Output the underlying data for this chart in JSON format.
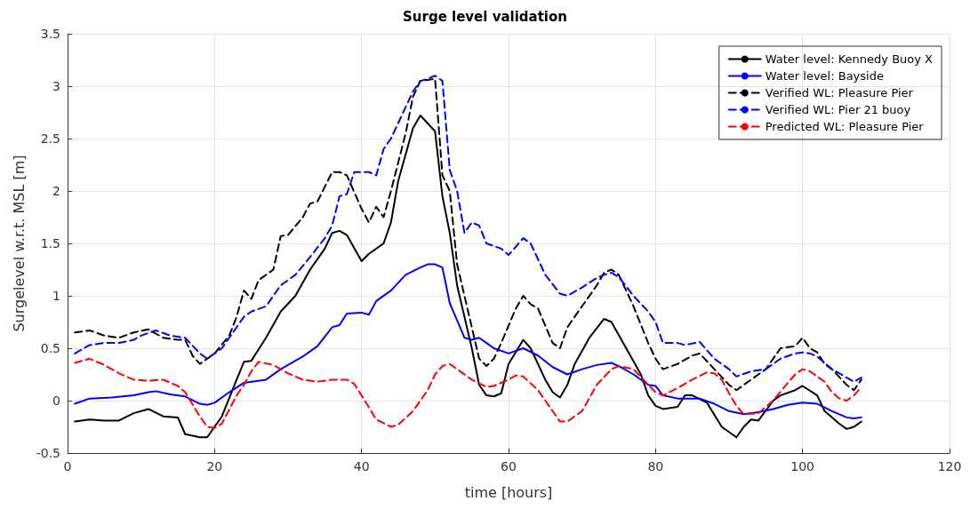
{
  "chart_data": {
    "type": "line",
    "title": "Surge level validation",
    "xlabel": "time [hours]",
    "ylabel": "Surgelevel w.r.t. MSL [m]",
    "xlim": [
      0,
      120
    ],
    "xticks": [
      0,
      20,
      40,
      60,
      80,
      100,
      120
    ],
    "ylim": [
      -0.5,
      3.5
    ],
    "yticks": [
      -0.5,
      0,
      0.5,
      1,
      1.5,
      2,
      2.5,
      3,
      3.5
    ],
    "grid": true,
    "legend": "top right",
    "marker": "none",
    "series": [
      {
        "name": "Water level: Kennedy Buoy X",
        "color": "#000000",
        "line_style": "solid",
        "x": [
          1,
          3,
          5,
          7,
          9,
          11,
          13,
          15,
          16,
          18,
          19,
          21,
          23,
          24,
          25,
          27,
          29,
          31,
          33,
          35,
          36,
          37,
          38,
          40,
          41,
          43,
          44,
          45,
          47,
          48,
          50,
          51,
          52,
          53,
          55,
          56,
          57,
          58,
          59,
          60,
          62,
          63,
          65,
          66,
          67,
          68,
          69,
          71,
          73,
          74,
          76,
          78,
          79,
          80,
          81,
          83,
          84,
          85,
          87,
          89,
          91,
          92,
          93,
          94,
          96,
          97,
          99,
          100,
          102,
          103,
          105,
          106,
          107,
          108
        ],
        "values": [
          -0.2,
          -0.18,
          -0.19,
          -0.19,
          -0.12,
          -0.08,
          -0.15,
          -0.16,
          -0.32,
          -0.35,
          -0.35,
          -0.15,
          0.2,
          0.37,
          0.38,
          0.6,
          0.85,
          1.0,
          1.25,
          1.45,
          1.6,
          1.62,
          1.58,
          1.33,
          1.4,
          1.5,
          1.7,
          2.1,
          2.6,
          2.72,
          2.57,
          1.95,
          1.6,
          1.1,
          0.5,
          0.15,
          0.05,
          0.04,
          0.07,
          0.35,
          0.58,
          0.5,
          0.2,
          0.08,
          0.03,
          0.15,
          0.35,
          0.6,
          0.78,
          0.75,
          0.5,
          0.25,
          0.05,
          -0.05,
          -0.08,
          -0.06,
          0.05,
          0.05,
          -0.02,
          -0.25,
          -0.35,
          -0.25,
          -0.18,
          -0.19,
          0.0,
          0.05,
          0.1,
          0.14,
          0.05,
          -0.1,
          -0.22,
          -0.27,
          -0.25,
          -0.2
        ]
      },
      {
        "name": "Water level: Bayside",
        "color": "#0000ff",
        "line_style": "solid",
        "x": [
          1,
          3,
          6,
          9,
          11,
          12,
          14,
          16,
          18,
          19,
          20,
          22,
          24,
          27,
          29,
          32,
          34,
          36,
          37,
          38,
          40,
          41,
          42,
          44,
          46,
          48,
          49,
          50,
          51,
          52,
          54,
          55,
          56,
          57,
          58,
          60,
          62,
          64,
          66,
          68,
          70,
          72,
          74,
          75,
          77,
          79,
          80,
          81,
          83,
          86,
          88,
          90,
          92,
          94,
          96,
          98,
          100,
          102,
          104,
          106,
          107,
          108
        ],
        "values": [
          -0.03,
          0.02,
          0.03,
          0.05,
          0.08,
          0.09,
          0.06,
          0.04,
          -0.03,
          -0.04,
          -0.02,
          0.08,
          0.17,
          0.2,
          0.3,
          0.42,
          0.52,
          0.7,
          0.72,
          0.83,
          0.84,
          0.82,
          0.95,
          1.05,
          1.2,
          1.27,
          1.3,
          1.3,
          1.27,
          0.93,
          0.6,
          0.58,
          0.6,
          0.55,
          0.5,
          0.45,
          0.5,
          0.43,
          0.32,
          0.25,
          0.3,
          0.34,
          0.36,
          0.33,
          0.25,
          0.15,
          0.14,
          0.05,
          0.02,
          0.02,
          -0.03,
          -0.1,
          -0.13,
          -0.11,
          -0.08,
          -0.04,
          -0.02,
          -0.03,
          -0.1,
          -0.16,
          -0.17,
          -0.16
        ]
      },
      {
        "name": "Verified WL: Pleasure Pier",
        "color": "#000000",
        "line_style": "dashed",
        "x": [
          1,
          3,
          5,
          7,
          9,
          11,
          13,
          15,
          16,
          17,
          18,
          20,
          22,
          23,
          24,
          25,
          26,
          28,
          29,
          30,
          32,
          33,
          34,
          36,
          37,
          38,
          40,
          41,
          42,
          43,
          44,
          46,
          47,
          48,
          49,
          50,
          51,
          52,
          53,
          55,
          56,
          57,
          58,
          59,
          61,
          62,
          63,
          64,
          66,
          67,
          68,
          70,
          72,
          73,
          74,
          75,
          77,
          79,
          80,
          81,
          83,
          85,
          86,
          88,
          90,
          91,
          93,
          95,
          97,
          99,
          100,
          101,
          102,
          103,
          104,
          106,
          107,
          108
        ],
        "values": [
          0.65,
          0.67,
          0.62,
          0.6,
          0.65,
          0.68,
          0.6,
          0.58,
          0.58,
          0.43,
          0.35,
          0.45,
          0.62,
          0.8,
          1.05,
          0.97,
          1.15,
          1.25,
          1.57,
          1.58,
          1.75,
          1.88,
          1.9,
          2.18,
          2.18,
          2.15,
          1.83,
          1.7,
          1.85,
          1.75,
          2.0,
          2.55,
          2.9,
          3.05,
          3.06,
          3.07,
          2.15,
          2.0,
          1.3,
          0.7,
          0.4,
          0.33,
          0.4,
          0.55,
          0.88,
          1.0,
          0.92,
          0.88,
          0.55,
          0.5,
          0.7,
          0.9,
          1.1,
          1.22,
          1.25,
          1.2,
          0.9,
          0.55,
          0.4,
          0.3,
          0.35,
          0.43,
          0.45,
          0.3,
          0.15,
          0.1,
          0.2,
          0.3,
          0.5,
          0.52,
          0.6,
          0.5,
          0.46,
          0.35,
          0.3,
          0.15,
          0.1,
          0.2
        ]
      },
      {
        "name": "Verified WL: Pier 21 buoy",
        "color": "#0000ff",
        "line_style": "dashed",
        "x": [
          1,
          3,
          5,
          7,
          9,
          10,
          12,
          14,
          16,
          18,
          19,
          21,
          22,
          24,
          25,
          27,
          29,
          31,
          33,
          35,
          36,
          37,
          38,
          39,
          41,
          42,
          43,
          44,
          46,
          47,
          48,
          49,
          50,
          51,
          52,
          53,
          54,
          55,
          56,
          57,
          59,
          60,
          62,
          63,
          65,
          67,
          68,
          70,
          72,
          73,
          74,
          75,
          77,
          79,
          80,
          81,
          83,
          84,
          86,
          88,
          90,
          91,
          93,
          95,
          97,
          99,
          100,
          101,
          102,
          104,
          106,
          107,
          108
        ],
        "values": [
          0.45,
          0.53,
          0.55,
          0.55,
          0.58,
          0.62,
          0.67,
          0.62,
          0.6,
          0.45,
          0.4,
          0.5,
          0.6,
          0.8,
          0.85,
          0.9,
          1.1,
          1.2,
          1.37,
          1.55,
          1.67,
          1.95,
          1.97,
          2.18,
          2.18,
          2.15,
          2.4,
          2.5,
          2.8,
          2.95,
          3.05,
          3.07,
          3.1,
          3.05,
          2.2,
          2.0,
          1.6,
          1.7,
          1.67,
          1.5,
          1.45,
          1.39,
          1.55,
          1.5,
          1.2,
          1.02,
          1.0,
          1.08,
          1.17,
          1.2,
          1.22,
          1.18,
          1.0,
          0.85,
          0.75,
          0.55,
          0.55,
          0.53,
          0.56,
          0.4,
          0.3,
          0.23,
          0.28,
          0.3,
          0.4,
          0.45,
          0.46,
          0.45,
          0.42,
          0.3,
          0.22,
          0.18,
          0.22
        ]
      },
      {
        "name": "Predicted WL: Pleasure Pier",
        "color": "#ff0000",
        "line_style": "dashed",
        "x": [
          1,
          3,
          5,
          7,
          9,
          11,
          13,
          15,
          16,
          18,
          19,
          20,
          21,
          23,
          24,
          25,
          26,
          28,
          30,
          32,
          34,
          36,
          38,
          39,
          40,
          42,
          44,
          45,
          47,
          49,
          50,
          51,
          52,
          53,
          55,
          57,
          58,
          60,
          61,
          62,
          64,
          66,
          67,
          68,
          70,
          72,
          74,
          75,
          77,
          79,
          80,
          81,
          83,
          85,
          87,
          88,
          89,
          90,
          91,
          92,
          94,
          96,
          98,
          99,
          100,
          101,
          103,
          104,
          105,
          106,
          107,
          108
        ],
        "values": [
          0.36,
          0.4,
          0.34,
          0.26,
          0.2,
          0.19,
          0.2,
          0.14,
          0.08,
          -0.15,
          -0.25,
          -0.26,
          -0.22,
          0.05,
          0.15,
          0.28,
          0.37,
          0.34,
          0.26,
          0.2,
          0.18,
          0.2,
          0.2,
          0.16,
          0.05,
          -0.18,
          -0.25,
          -0.23,
          -0.1,
          0.1,
          0.25,
          0.33,
          0.35,
          0.3,
          0.2,
          0.13,
          0.14,
          0.2,
          0.24,
          0.23,
          0.1,
          -0.1,
          -0.2,
          -0.2,
          -0.1,
          0.15,
          0.3,
          0.33,
          0.3,
          0.15,
          0.08,
          0.05,
          0.12,
          0.2,
          0.27,
          0.26,
          0.2,
          0.07,
          -0.05,
          -0.13,
          -0.12,
          0.0,
          0.17,
          0.25,
          0.3,
          0.28,
          0.18,
          0.08,
          0.02,
          0.0,
          0.05,
          0.13
        ]
      }
    ]
  }
}
